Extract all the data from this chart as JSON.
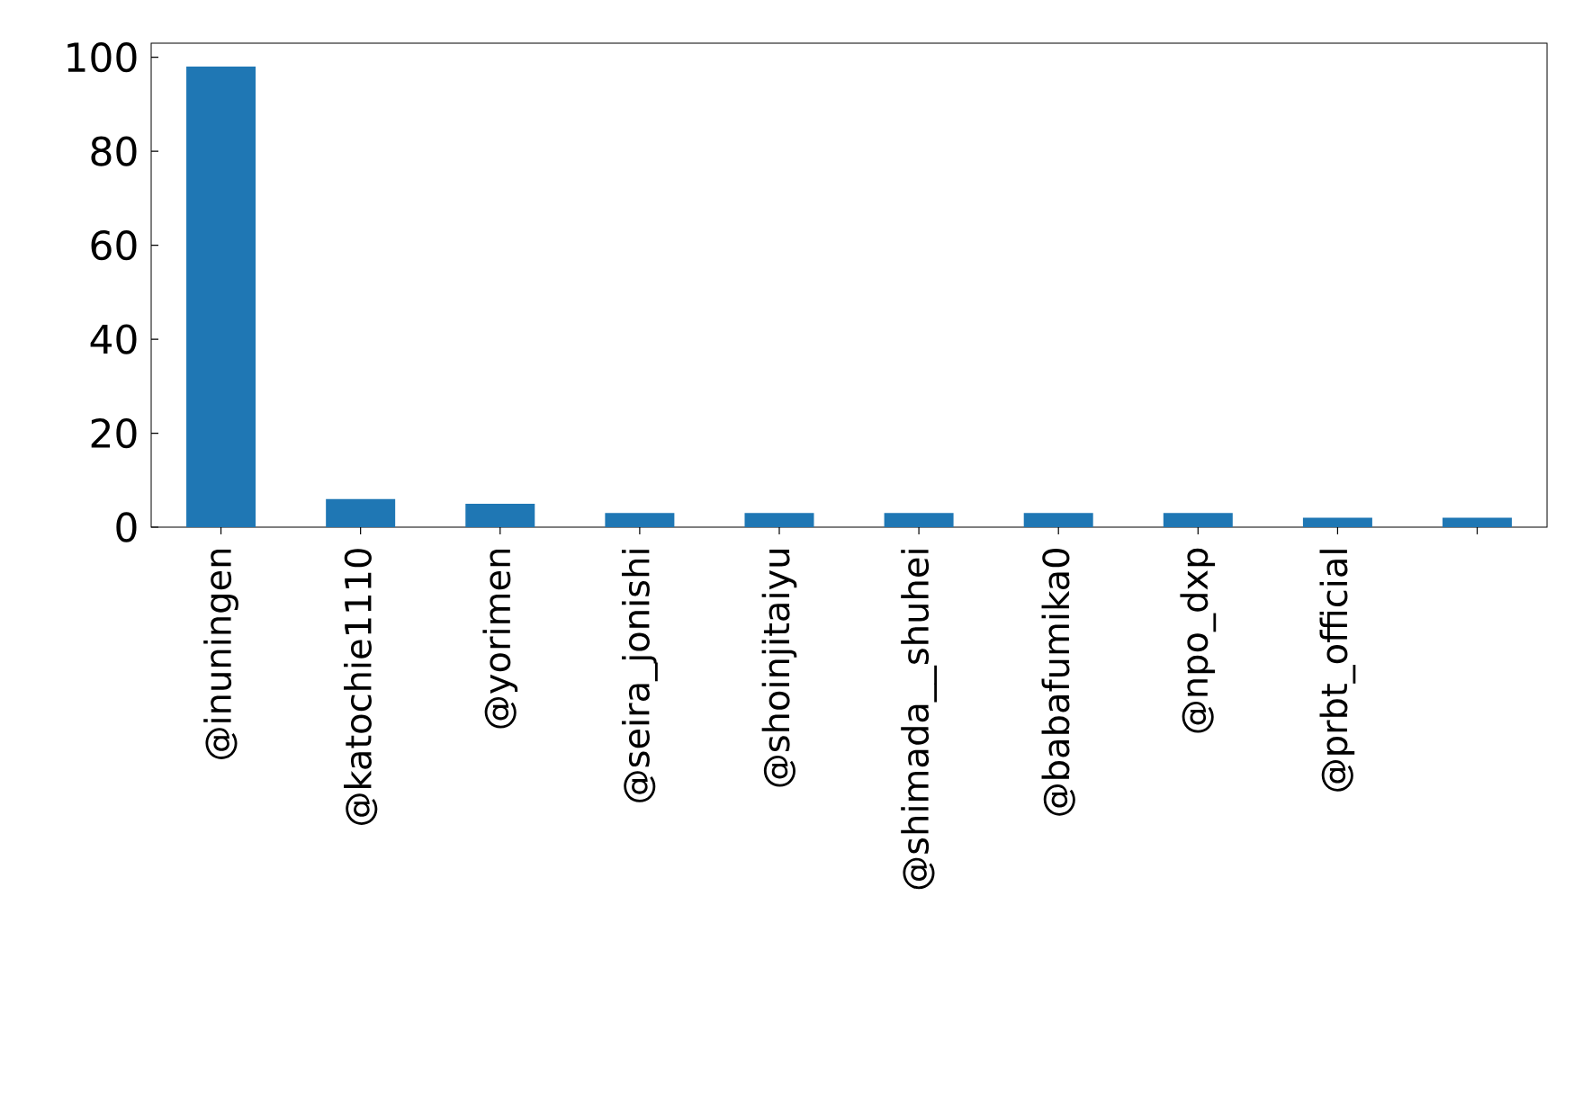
{
  "chart_data": {
    "type": "bar",
    "categories": [
      "@inuningen",
      "@katochie1110",
      "@yorimen",
      "@seira_jonishi",
      "@shoinjitaiyu",
      "@shimada__shuhei",
      "@babafumika0",
      "@npo_dxp",
      "@prbt_official",
      null
    ],
    "values": [
      98,
      6,
      5,
      3,
      3,
      3,
      3,
      3,
      2,
      2
    ],
    "color": "#1f77b4",
    "ylim": [
      0,
      103
    ],
    "yticks": [
      0,
      20,
      40,
      60,
      80,
      100
    ]
  }
}
